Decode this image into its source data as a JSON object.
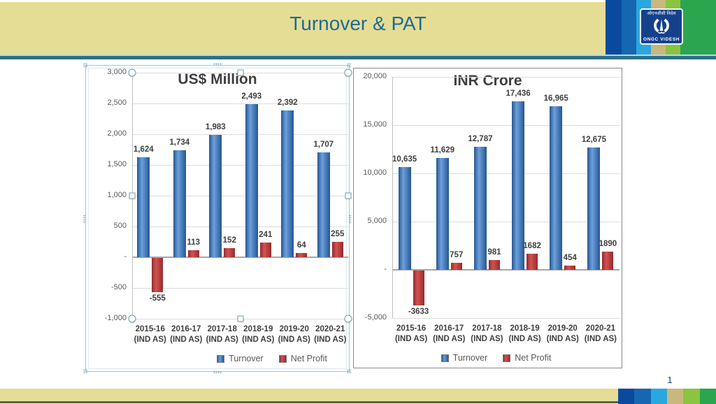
{
  "slide": {
    "title": "Turnover & PAT",
    "page_number": "1",
    "logo": {
      "hindi_text": "ओएनजीसी विदेश",
      "english_text": "ONGC VIDESH"
    }
  },
  "colors": {
    "header_band": "#e5dd95",
    "header_title": "#1d6b93",
    "divider_top": "#b9d8e3",
    "divider": "#2d7089",
    "footer_bar": "#e5dd95",
    "footer_edge": "#52634a",
    "logo_bg": "#15418c",
    "stripes": [
      "#0a4a9e",
      "#1567b1",
      "#29a8e0",
      "#c8b87c",
      "#8ac440",
      "#2ba64e"
    ],
    "turnover_bar": "#27568f",
    "turnover_highlight": "#6ba0de",
    "net_profit_bar": "#97292e",
    "net_profit_highlight": "#cf5450"
  },
  "chart_data": [
    {
      "type": "bar",
      "title": "US$ Million",
      "categories": [
        "2015-16",
        "2016-17",
        "2017-18",
        "2018-19",
        "2019-20",
        "2020-21"
      ],
      "category_sub": "(IND AS)",
      "series": [
        {
          "name": "Turnover",
          "color": "#27568f",
          "highlight": "#6ba0de",
          "values": [
            1624,
            1734,
            1983,
            2493,
            2392,
            1707
          ],
          "labels": [
            "1,624",
            "1,734",
            "1,983",
            "2,493",
            "2,392",
            "1,707"
          ]
        },
        {
          "name": "Net Profit",
          "color": "#97292e",
          "highlight": "#cf5450",
          "values": [
            -555,
            113,
            152,
            241,
            64,
            255
          ],
          "labels": [
            "-555",
            "113",
            "152",
            "241",
            "64",
            "255"
          ]
        }
      ],
      "ylim": [
        -1000,
        3000
      ],
      "yticks": [
        3000,
        2500,
        2000,
        1500,
        1000,
        500,
        0,
        -500,
        -1000
      ],
      "ytick_labels": [
        "3,000",
        "2,500",
        "2,000",
        "1,500",
        "1,000",
        "500",
        "-",
        "-500",
        "-1,000"
      ],
      "grid": true,
      "legend_position": "bottom",
      "legend_entries": [
        "Turnover",
        "Net Profit"
      ],
      "selected": true
    },
    {
      "type": "bar",
      "title": "INR Crore",
      "categories": [
        "2015-16",
        "2016-17",
        "2017-18",
        "2018-19",
        "2019-20",
        "2020-21"
      ],
      "category_sub": "(IND AS)",
      "series": [
        {
          "name": "Turnover",
          "color": "#27568f",
          "highlight": "#6ba0de",
          "values": [
            10635,
            11629,
            12787,
            17436,
            16965,
            12675
          ],
          "labels": [
            "10,635",
            "11,629",
            "12,787",
            "17,436",
            "16,965",
            "12,675"
          ]
        },
        {
          "name": "Net Profit",
          "color": "#97292e",
          "highlight": "#cf5450",
          "values": [
            -3633,
            757,
            981,
            1682,
            454,
            1890
          ],
          "labels": [
            "-3633",
            "757",
            "981",
            "1682",
            "454",
            "1890"
          ]
        }
      ],
      "ylim": [
        -5000,
        20000
      ],
      "yticks": [
        20000,
        15000,
        10000,
        5000,
        0,
        -5000
      ],
      "ytick_labels": [
        "20,000",
        "15,000",
        "10,000",
        "5,000",
        "-",
        "-5,000"
      ],
      "grid": true,
      "legend_position": "bottom",
      "legend_entries": [
        "Turnover",
        "Net Profit"
      ],
      "selected": false
    }
  ]
}
